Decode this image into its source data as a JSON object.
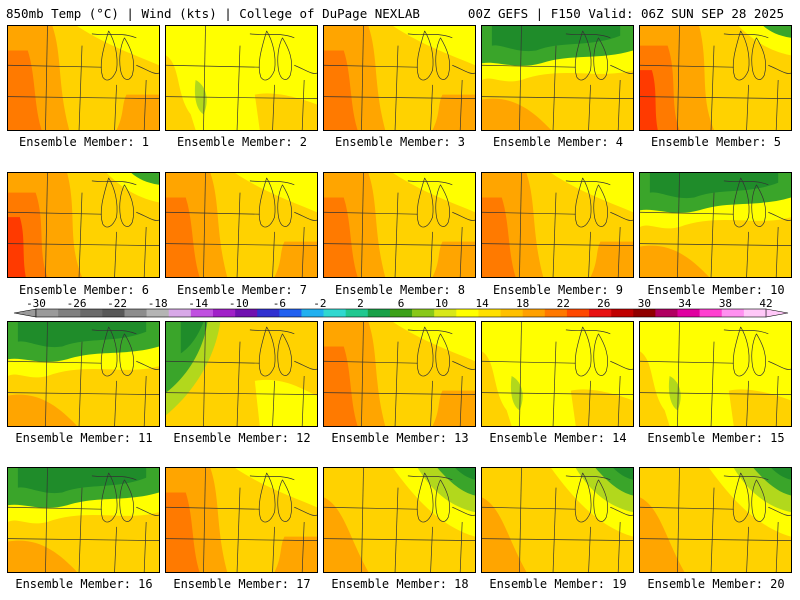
{
  "header": {
    "left": "850mb Temp (°C) | Wind (kts) | College of DuPage NEXLAB",
    "right": "00Z GEFS | F150 Valid: 06Z SUN SEP 28 2025"
  },
  "panels": [
    {
      "label": "Ensemble Member: 1",
      "tone": "warm-west"
    },
    {
      "label": "Ensemble Member: 2",
      "tone": "yellow"
    },
    {
      "label": "Ensemble Member: 3",
      "tone": "warm-west"
    },
    {
      "label": "Ensemble Member: 4",
      "tone": "cool-north"
    },
    {
      "label": "Ensemble Member: 5",
      "tone": "hot-west"
    },
    {
      "label": "Ensemble Member: 6",
      "tone": "hot-west"
    },
    {
      "label": "Ensemble Member: 7",
      "tone": "warm-west"
    },
    {
      "label": "Ensemble Member: 8",
      "tone": "warm-west"
    },
    {
      "label": "Ensemble Member: 9",
      "tone": "warm-west"
    },
    {
      "label": "Ensemble Member: 10",
      "tone": "cool-north"
    },
    {
      "label": "Ensemble Member: 11",
      "tone": "cool-north"
    },
    {
      "label": "Ensemble Member: 12",
      "tone": "cool-west"
    },
    {
      "label": "Ensemble Member: 13",
      "tone": "warm-west"
    },
    {
      "label": "Ensemble Member: 14",
      "tone": "yellow"
    },
    {
      "label": "Ensemble Member: 15",
      "tone": "yellow"
    },
    {
      "label": "Ensemble Member: 16",
      "tone": "cool-north"
    },
    {
      "label": "Ensemble Member: 17",
      "tone": "warm-west"
    },
    {
      "label": "Ensemble Member: 18",
      "tone": "cool-northeast"
    },
    {
      "label": "Ensemble Member: 19",
      "tone": "cool-northeast"
    },
    {
      "label": "Ensemble Member: 20",
      "tone": "cool-northeast"
    }
  ],
  "colorbar": {
    "ticks": [
      "-30",
      "-26",
      "-22",
      "-18",
      "-14",
      "-10",
      "-6",
      "-2",
      "2",
      "6",
      "10",
      "14",
      "18",
      "22",
      "26",
      "30",
      "34",
      "38",
      "42"
    ],
    "colors": [
      "#9a9a9a",
      "#808080",
      "#6a6a6a",
      "#585858",
      "#8c8c8c",
      "#b4b4b4",
      "#d8a8e8",
      "#c050e0",
      "#a020c8",
      "#7010b0",
      "#3030d0",
      "#2060f0",
      "#20b0f0",
      "#30d8d0",
      "#20c890",
      "#18a048",
      "#3ca018",
      "#88c818",
      "#d8e818",
      "#ffff00",
      "#ffe000",
      "#ffc000",
      "#ffa000",
      "#ff7800",
      "#ff4800",
      "#e81010",
      "#c00000",
      "#900000",
      "#b00060",
      "#e000a0",
      "#ff40d0",
      "#ff90f0",
      "#ffc8f8"
    ]
  },
  "palette": {
    "green-dark": "#1f8c2a",
    "green": "#3aa52a",
    "yellow-green": "#b2d81c",
    "yellow": "#ffff00",
    "gold": "#ffd200",
    "orange": "#ffa500",
    "dark-orange": "#ff7a00",
    "red": "#ff3a00"
  }
}
